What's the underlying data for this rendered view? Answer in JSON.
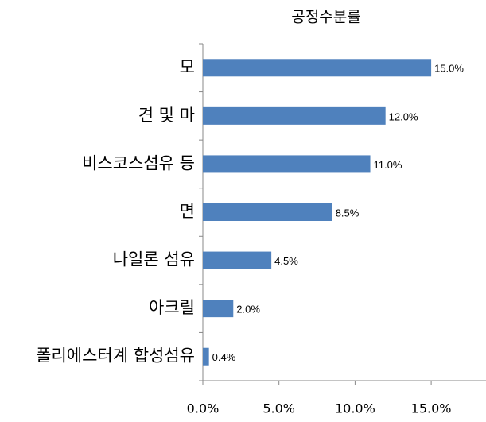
{
  "chart_data": {
    "type": "hbar",
    "title": "공정수분률",
    "categories": [
      "모",
      "견 및 마",
      "비스코스섬유 등",
      "면",
      "나일론 섬유",
      "아크릴",
      "폴리에스터계 합성섬유"
    ],
    "values": [
      15.0,
      12.0,
      11.0,
      8.5,
      4.5,
      2.0,
      0.4
    ],
    "value_labels": [
      "15.0%",
      "12.0%",
      "11.0%",
      "8.5%",
      "4.5%",
      "2.0%",
      "0.4%"
    ],
    "color": "#4f81bd",
    "xlim": [
      0,
      18.6
    ],
    "xticks": [
      {
        "value": 0,
        "label": "0.0%"
      },
      {
        "value": 5,
        "label": "5.0%"
      },
      {
        "value": 10,
        "label": "10.0%"
      },
      {
        "value": 15,
        "label": "15.0%"
      }
    ],
    "grid": false
  }
}
